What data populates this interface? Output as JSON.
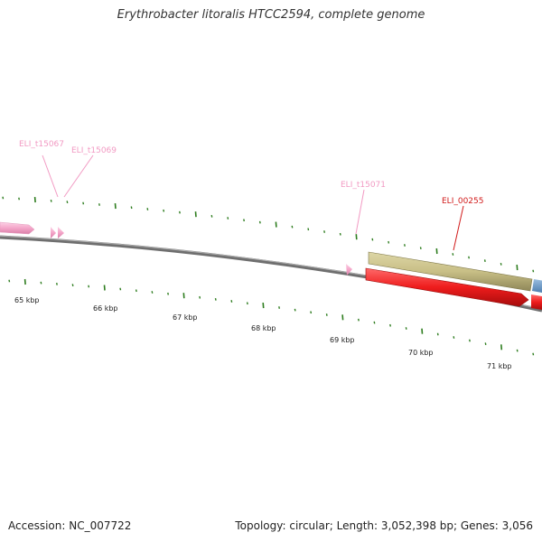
{
  "title": "Erythrobacter litoralis HTCC2594, complete genome",
  "footer": {
    "accession": "Accession: NC_007722",
    "summary": "Topology: circular; Length: 3,052,398 bp; Genes: 3,056"
  },
  "colors": {
    "backbone": "#808080",
    "tick": "#2e7d1f",
    "trna": "#f4a6c9",
    "trna_label": "#f29ac3",
    "cds_forward": "#c8bf86",
    "cds_reverse": "#ee1c1c",
    "cds_label": "#d11a1a",
    "cds_blue": "#6699cc"
  },
  "kbp_labels": [
    "65 kbp",
    "66 kbp",
    "67 kbp",
    "68 kbp",
    "69 kbp",
    "70 kbp",
    "71 kbp"
  ],
  "features": [
    {
      "id": "ELI_t15067",
      "label": "ELI_t15067",
      "kind": "tRNA"
    },
    {
      "id": "ELI_t15069",
      "label": "ELI_t15069",
      "kind": "tRNA"
    },
    {
      "id": "ELI_t15071",
      "label": "ELI_t15071",
      "kind": "tRNA"
    },
    {
      "id": "ELI_00255",
      "label": "ELI_00255",
      "kind": "CDS"
    }
  ]
}
